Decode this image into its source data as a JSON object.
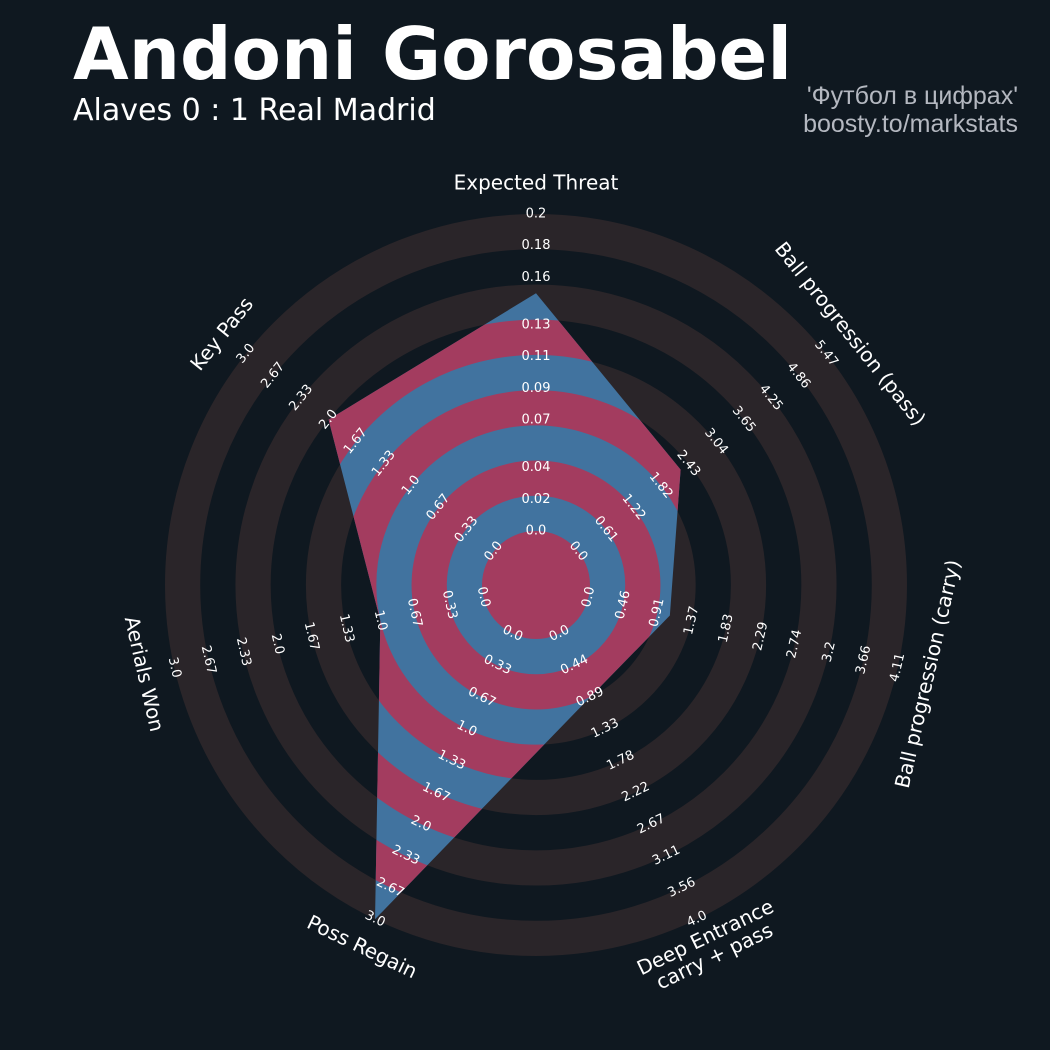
{
  "chart_data": {
    "type": "radar",
    "title": "Andoni Gorosabel",
    "subtitle": "Alaves 0 : 1 Real Madrid",
    "annotations": [
      "'Футбол в цифрах'",
      "boosty.to/markstats"
    ],
    "categories": [
      "Expected Threat",
      "Ball progression (pass)",
      "Ball progression (carry)",
      "Deep Entrance\ncarry + pass",
      "Poss Regain",
      "Aerials Won",
      "Key Pass"
    ],
    "values": [
      0.15,
      2.26,
      1.08,
      0.89,
      3.0,
      1.0,
      2.0
    ],
    "color": "#41739f",
    "ring_color": "#a33c5f",
    "axes": [
      {
        "lim": [
          0,
          0.2
        ],
        "ticks": [
          {
            "value": 0,
            "label": "0.0"
          },
          0.02,
          0.04,
          0.07,
          0.09,
          0.11,
          0.13,
          0.16,
          0.18,
          0.2
        ]
      },
      {
        "lim": [
          0,
          5.47
        ],
        "ticks": [
          {
            "value": 0,
            "label": "0.0"
          },
          0.61,
          1.22,
          1.82,
          2.43,
          3.04,
          3.65,
          4.25,
          4.86,
          5.47
        ]
      },
      {
        "lim": [
          0,
          4.11
        ],
        "ticks": [
          {
            "value": 0,
            "label": "0.0"
          },
          0.46,
          0.91,
          1.37,
          1.83,
          2.29,
          2.74,
          3.2,
          3.66,
          4.11
        ]
      },
      {
        "lim": [
          0,
          4
        ],
        "ticks": [
          {
            "value": 0,
            "label": "0.0"
          },
          0.44,
          0.89,
          1.33,
          1.78,
          2.22,
          2.67,
          3.11,
          3.56,
          {
            "value": 4,
            "label": "4.0"
          }
        ]
      },
      {
        "lim": [
          0,
          3
        ],
        "ticks": [
          {
            "value": 0,
            "label": "0.0"
          },
          0.33,
          0.67,
          {
            "value": 1,
            "label": "1.0"
          },
          1.33,
          1.67,
          {
            "value": 2,
            "label": "2.0"
          },
          2.33,
          2.67,
          {
            "value": 3,
            "label": "3.0"
          }
        ]
      },
      {
        "lim": [
          0,
          3
        ],
        "ticks": [
          {
            "value": 0,
            "label": "0.0"
          },
          0.33,
          0.67,
          {
            "value": 1,
            "label": "1.0"
          },
          1.33,
          1.67,
          {
            "value": 2,
            "label": "2.0"
          },
          2.33,
          2.67,
          {
            "value": 3,
            "label": "3.0"
          }
        ]
      },
      {
        "lim": [
          0,
          3
        ],
        "ticks": [
          {
            "value": 0,
            "label": "0.0"
          },
          0.33,
          0.67,
          {
            "value": 1,
            "label": "1.0"
          },
          1.33,
          1.67,
          {
            "value": 2,
            "label": "2.0"
          },
          2.33,
          2.67,
          {
            "value": 3,
            "label": "3.0"
          }
        ]
      }
    ]
  }
}
